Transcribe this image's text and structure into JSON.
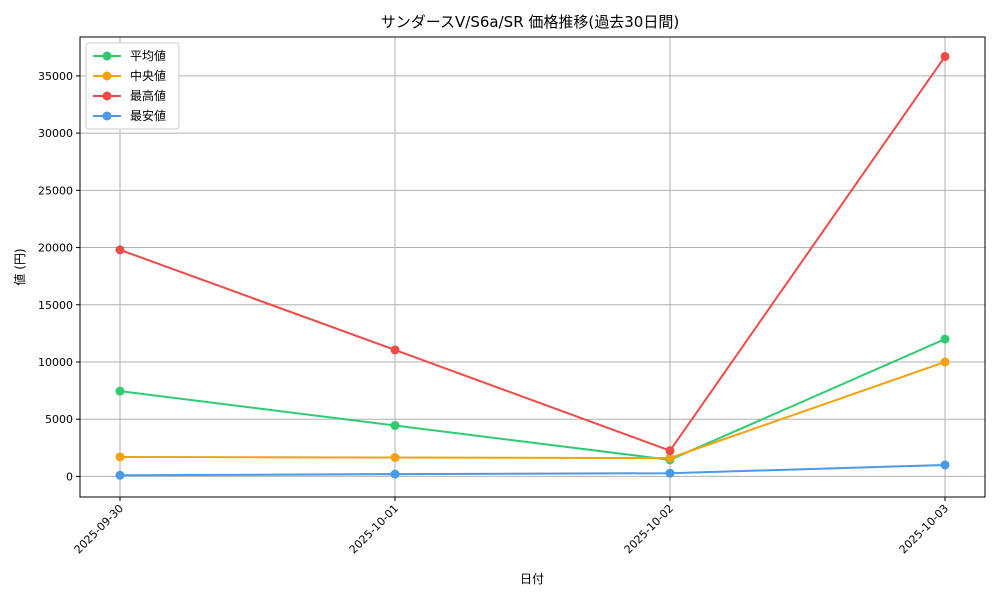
{
  "chart_data": {
    "type": "line",
    "title": "サンダースV/S6a/SR 価格推移(過去30日間)",
    "xlabel": "日付",
    "ylabel": "値 (円)",
    "x": [
      "2025-09-30",
      "2025-10-01",
      "2025-10-02",
      "2025-10-03"
    ],
    "ylim": [
      -1800,
      38400
    ],
    "yticks": [
      0,
      5000,
      10000,
      15000,
      20000,
      25000,
      30000,
      35000
    ],
    "grid": true,
    "legend_position": "top-left",
    "series": [
      {
        "name": "平均値",
        "color": "#2ecc71",
        "values": [
          7450,
          4450,
          1450,
          12000
        ]
      },
      {
        "name": "中央値",
        "color": "#f5a10a",
        "values": [
          1700,
          1650,
          1600,
          10000
        ]
      },
      {
        "name": "最高値",
        "color": "#f04a48",
        "values": [
          19800,
          11050,
          2250,
          36700
        ]
      },
      {
        "name": "最安値",
        "color": "#4a9ae8",
        "values": [
          100,
          200,
          280,
          1000
        ]
      }
    ]
  }
}
